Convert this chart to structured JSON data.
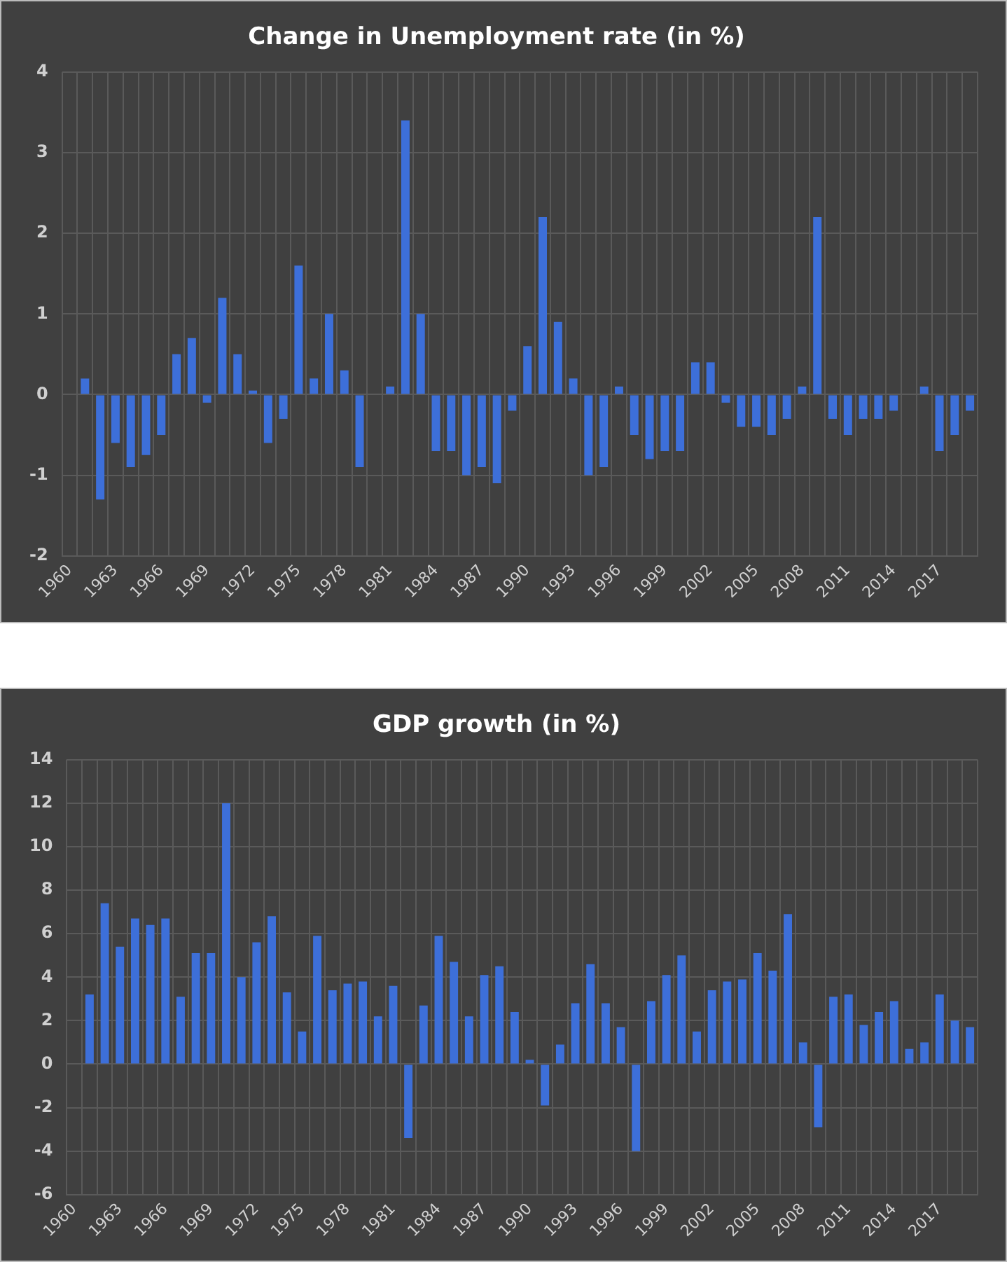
{
  "chart_data": [
    {
      "type": "bar",
      "title": "Change in Unemployment rate (in %)",
      "categories": [
        "1960",
        null,
        null,
        "1963",
        null,
        null,
        "1966",
        null,
        null,
        "1969",
        null,
        null,
        "1972",
        null,
        null,
        "1975",
        null,
        null,
        "1978",
        null,
        null,
        "1981",
        null,
        null,
        "1984",
        null,
        null,
        "1987",
        null,
        null,
        "1990",
        null,
        null,
        "1993",
        null,
        null,
        "1996",
        null,
        null,
        "1999",
        null,
        null,
        "2002",
        null,
        null,
        "2005",
        null,
        null,
        "2008",
        null,
        null,
        "2011",
        null,
        null,
        "2014",
        null,
        null,
        "2017",
        null,
        null
      ],
      "values": [
        null,
        0.2,
        -1.3,
        -0.6,
        -0.9,
        -0.75,
        -0.5,
        0.5,
        0.7,
        -0.1,
        1.2,
        0.5,
        0.05,
        -0.6,
        -0.3,
        1.6,
        0.2,
        1.0,
        0.3,
        -0.9,
        0,
        0.1,
        3.4,
        1.0,
        -0.7,
        -0.7,
        -1.0,
        -0.9,
        -1.1,
        -0.2,
        0.6,
        2.2,
        0.9,
        0.2,
        -1.0,
        -0.9,
        0.1,
        -0.5,
        -0.8,
        -0.7,
        -0.7,
        0.4,
        0.4,
        -0.1,
        -0.4,
        -0.4,
        -0.5,
        -0.3,
        0.1,
        2.2,
        -0.3,
        -0.5,
        -0.3,
        -0.3,
        -0.2,
        0,
        0.1,
        -0.7,
        -0.5,
        -0.2
      ],
      "color": "#3d6fd9",
      "ylim": [
        -2,
        4
      ],
      "yticks": [
        -2,
        -1,
        0,
        1,
        2,
        3,
        4
      ],
      "grid": true
    },
    {
      "type": "bar",
      "title": "GDP growth (in %)",
      "categories": [
        "1960",
        null,
        null,
        "1963",
        null,
        null,
        "1966",
        null,
        null,
        "1969",
        null,
        null,
        "1972",
        null,
        null,
        "1975",
        null,
        null,
        "1978",
        null,
        null,
        "1981",
        null,
        null,
        "1984",
        null,
        null,
        "1987",
        null,
        null,
        "1990",
        null,
        null,
        "1993",
        null,
        null,
        "1996",
        null,
        null,
        "1999",
        null,
        null,
        "2002",
        null,
        null,
        "2005",
        null,
        null,
        "2008",
        null,
        null,
        "2011",
        null,
        null,
        "2014",
        null,
        null,
        "2017",
        null,
        null
      ],
      "values": [
        null,
        3.2,
        7.4,
        5.4,
        6.7,
        6.4,
        6.7,
        3.1,
        5.1,
        5.1,
        12.0,
        4.0,
        5.6,
        6.8,
        3.3,
        1.5,
        5.9,
        3.4,
        3.7,
        3.8,
        2.2,
        3.6,
        -3.4,
        2.7,
        5.9,
        4.7,
        2.2,
        4.1,
        4.5,
        2.4,
        0.2,
        -1.9,
        0.9,
        2.8,
        4.6,
        2.8,
        1.7,
        -4.0,
        2.9,
        4.1,
        5.0,
        1.5,
        3.4,
        3.8,
        3.9,
        5.1,
        4.3,
        6.9,
        1.0,
        -2.9,
        3.1,
        3.2,
        1.8,
        2.4,
        2.9,
        0.7,
        1.0,
        3.2,
        2.0,
        1.7
      ],
      "color": "#3d6fd9",
      "ylim": [
        -6,
        14
      ],
      "yticks": [
        -6,
        -4,
        -2,
        0,
        2,
        4,
        6,
        8,
        10,
        12,
        14
      ],
      "grid": true
    }
  ]
}
